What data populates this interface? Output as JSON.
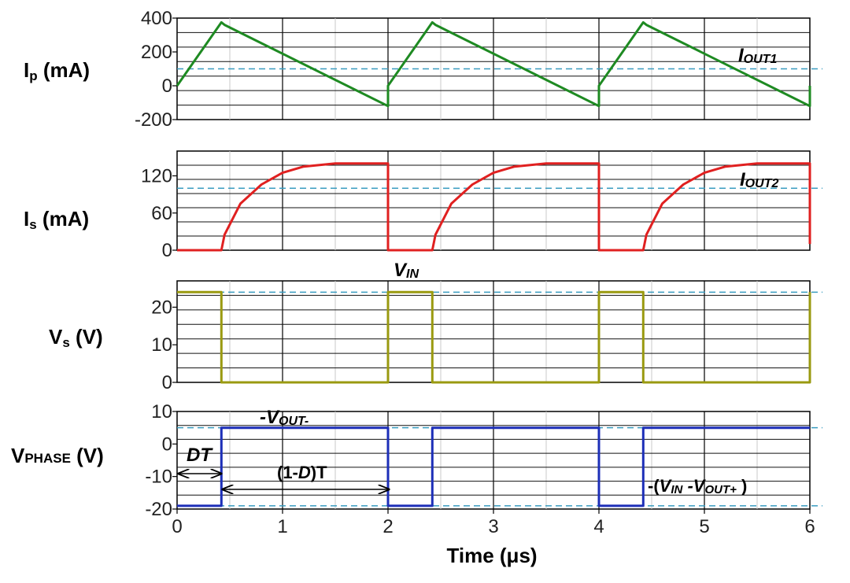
{
  "chart_data": [
    {
      "type": "line",
      "ylabel": {
        "main": "I",
        "sub": "p",
        "unit": " (mA)"
      },
      "ylim": [
        -200,
        400
      ],
      "yticks": [
        400,
        200,
        0,
        -200
      ],
      "series": [
        {
          "color": "#1e8a22",
          "x": [
            0,
            0.42,
            0.45,
            2.0,
            2.0,
            2.42,
            2.45,
            4.0,
            4.0,
            4.42,
            4.45,
            6.0,
            6.0
          ],
          "y": [
            0,
            375,
            360,
            -120,
            0,
            375,
            360,
            -120,
            0,
            375,
            360,
            -120,
            0
          ]
        }
      ],
      "refline": {
        "y": 100,
        "label": {
          "main": "I",
          "sub": "OUT1"
        }
      },
      "grid": true
    },
    {
      "type": "line",
      "ylabel": {
        "main": "I",
        "sub": "s",
        "unit": " (mA)"
      },
      "ylim": [
        0,
        160
      ],
      "yticks": [
        120,
        60,
        0
      ],
      "series": [
        {
          "color": "#e02020",
          "x": [
            0,
            0.42,
            0.45,
            0.6,
            0.8,
            1.0,
            1.2,
            1.5,
            2.0,
            2.0,
            2.42,
            2.45,
            2.6,
            2.8,
            3.0,
            3.2,
            3.5,
            4.0,
            4.0,
            4.42,
            4.45,
            4.6,
            4.8,
            5.0,
            5.2,
            5.5,
            6.0,
            6.0
          ],
          "y": [
            0,
            0,
            25,
            75,
            106,
            125,
            135,
            140,
            140,
            0,
            0,
            25,
            75,
            106,
            125,
            135,
            140,
            140,
            0,
            0,
            25,
            75,
            106,
            125,
            135,
            140,
            140,
            10
          ]
        }
      ],
      "refline": {
        "y": 100,
        "label": {
          "main": "I",
          "sub": "OUT2"
        }
      },
      "grid": true
    },
    {
      "type": "line",
      "ylabel": {
        "main": "V",
        "sub": "s",
        "unit": " (V)"
      },
      "ylim": [
        0,
        27
      ],
      "yticks": [
        20,
        10,
        0
      ],
      "series": [
        {
          "color": "#9a9a10",
          "x": [
            0,
            0.42,
            0.42,
            2.0,
            2.0,
            2.42,
            2.42,
            4.0,
            4.0,
            4.42,
            4.42,
            6.0,
            6.0
          ],
          "y": [
            24,
            24,
            0,
            0,
            24,
            24,
            0,
            0,
            24,
            24,
            0,
            0,
            24
          ]
        }
      ],
      "refline": {
        "y": 24,
        "label": {
          "main": "V",
          "sub": "IN"
        }
      },
      "grid": true
    },
    {
      "type": "line",
      "ylabel": {
        "main": "V",
        "sub": "PHASE",
        "unit": " (V)"
      },
      "ylim": [
        -20,
        10
      ],
      "yticks": [
        10,
        0,
        -10,
        -20
      ],
      "xlabel": "Time (μs)",
      "xticks": [
        0,
        1,
        2,
        3,
        4,
        5,
        6
      ],
      "series": [
        {
          "color": "#1d2fb8",
          "x": [
            0,
            0.42,
            0.42,
            2.0,
            2.0,
            2.42,
            2.42,
            4.0,
            4.0,
            4.42,
            4.42,
            6.0
          ],
          "y": [
            -19,
            -19,
            5,
            5,
            -19,
            -19,
            5,
            5,
            -19,
            -19,
            5,
            5
          ]
        }
      ],
      "reflines": [
        5,
        -19
      ],
      "annotations": {
        "vout_minus": {
          "pre": "-V",
          "sub": "OUT-"
        },
        "dt": "DT",
        "one_minus_d": {
          "pre": "(1-",
          "it": "D",
          "post": ")T"
        },
        "vin_minus_vout": {
          "pre": "-(",
          "v1": "V",
          "s1": "IN",
          "mid": " -V",
          "s2": "OUT+",
          "post": " )"
        }
      },
      "grid": true
    }
  ]
}
